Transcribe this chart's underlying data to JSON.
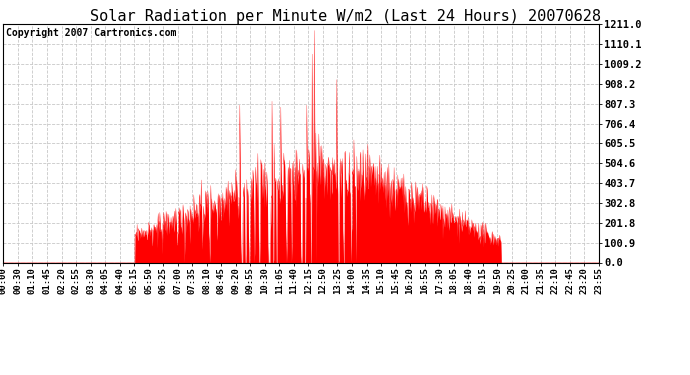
{
  "title": "Solar Radiation per Minute W/m2 (Last 24 Hours) 20070628",
  "copyright_text": "Copyright 2007 Cartronics.com",
  "yticks": [
    0.0,
    100.9,
    201.8,
    302.8,
    403.7,
    504.6,
    605.5,
    706.4,
    807.3,
    908.2,
    1009.2,
    1110.1,
    1211.0
  ],
  "ymax": 1211.0,
  "ymin": 0.0,
  "bar_color": "#FF0000",
  "dashed_line_color": "#C8C8C8",
  "background_color": "#FFFFFF",
  "plot_bg_color": "#FFFFFF",
  "border_color": "#000000",
  "title_fontsize": 11,
  "copyright_fontsize": 7,
  "tick_label_fontsize": 6.5,
  "ytick_fontsize": 7.5,
  "x_labels": [
    "00:00",
    "00:30",
    "01:10",
    "01:45",
    "02:20",
    "02:55",
    "03:30",
    "04:05",
    "04:40",
    "05:15",
    "05:50",
    "06:25",
    "07:00",
    "07:35",
    "08:10",
    "08:45",
    "09:20",
    "09:55",
    "10:30",
    "11:05",
    "11:40",
    "12:15",
    "12:50",
    "13:25",
    "14:00",
    "14:35",
    "15:10",
    "15:45",
    "16:20",
    "16:55",
    "17:30",
    "18:05",
    "18:40",
    "19:15",
    "19:50",
    "20:25",
    "21:00",
    "21:35",
    "22:10",
    "22:45",
    "23:20",
    "23:55"
  ]
}
